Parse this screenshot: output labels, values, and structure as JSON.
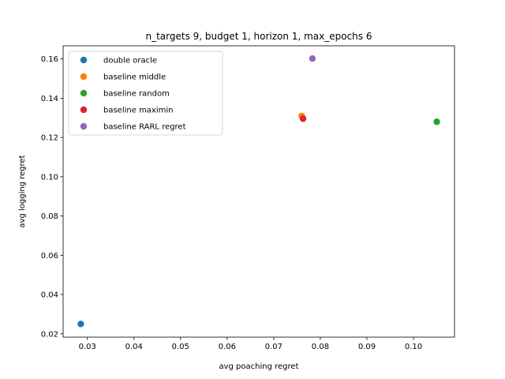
{
  "chart_data": {
    "type": "scatter",
    "title": "n_targets 9, budget 1, horizon 1, max_epochs 6",
    "xlabel": "avg poaching regret",
    "ylabel": "avg logging regret",
    "xlim": [
      0.0248,
      0.1088
    ],
    "ylim": [
      0.0183,
      0.1667
    ],
    "xticks": [
      0.03,
      0.04,
      0.05,
      0.06,
      0.07,
      0.08,
      0.09,
      0.1
    ],
    "xtick_labels": [
      "0.03",
      "0.04",
      "0.05",
      "0.06",
      "0.07",
      "0.08",
      "0.09",
      "0.10"
    ],
    "yticks": [
      0.02,
      0.04,
      0.06,
      0.08,
      0.1,
      0.12,
      0.14,
      0.16
    ],
    "ytick_labels": [
      "0.02",
      "0.04",
      "0.06",
      "0.08",
      "0.10",
      "0.12",
      "0.14",
      "0.16"
    ],
    "grid": false,
    "legend_position": "upper-left",
    "series": [
      {
        "name": "double oracle",
        "color": "#1f77b4",
        "x": [
          0.0286
        ],
        "y": [
          0.025
        ]
      },
      {
        "name": "baseline middle",
        "color": "#ff7f0e",
        "x": [
          0.076
        ],
        "y": [
          0.131
        ]
      },
      {
        "name": "baseline random",
        "color": "#2ca02c",
        "x": [
          0.105
        ],
        "y": [
          0.128
        ]
      },
      {
        "name": "baseline maximin",
        "color": "#d62728",
        "x": [
          0.0763
        ],
        "y": [
          0.1296
        ]
      },
      {
        "name": "baseline RARL regret",
        "color": "#9467bd",
        "x": [
          0.0783
        ],
        "y": [
          0.1602
        ]
      }
    ]
  }
}
